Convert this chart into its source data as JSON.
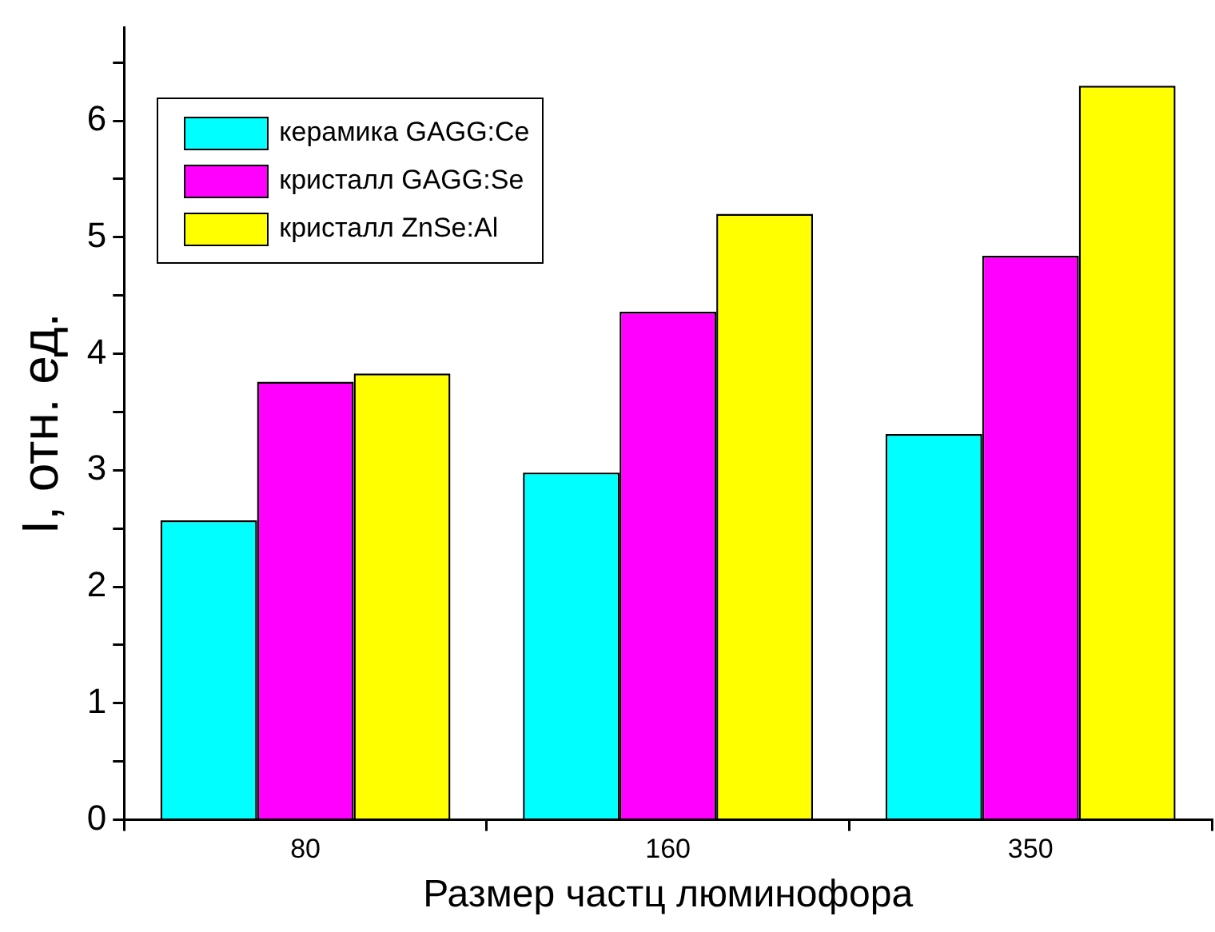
{
  "chart_data": {
    "type": "bar",
    "xlabel": "Размер частц люминофора",
    "ylabel": "I, отн. ед.",
    "categories": [
      "80",
      "160",
      "350"
    ],
    "series": [
      {
        "name": "керамика GAGG:Ce",
        "color": "#00ffff",
        "values": [
          2.57,
          2.98,
          3.31
        ]
      },
      {
        "name": "кристалл GAGG:Se",
        "color": "#ff00ff",
        "values": [
          3.76,
          4.36,
          4.84
        ]
      },
      {
        "name": "кристалл ZnSe:Al",
        "color": "#ffff00",
        "values": [
          3.83,
          5.2,
          6.3
        ]
      }
    ],
    "ylim": [
      0,
      6.8
    ],
    "yticks": [
      0,
      {
        "value": 0.5,
        "label": null
      },
      1,
      {
        "value": 1.5,
        "label": null
      },
      2,
      {
        "value": 2.5,
        "label": null
      },
      3,
      {
        "value": 3.5,
        "label": null
      },
      4,
      {
        "value": 4.5,
        "label": null
      },
      5,
      {
        "value": 5.5,
        "label": null
      },
      6,
      {
        "value": 6.5,
        "label": null
      }
    ],
    "grid": false,
    "legend": "top left"
  }
}
